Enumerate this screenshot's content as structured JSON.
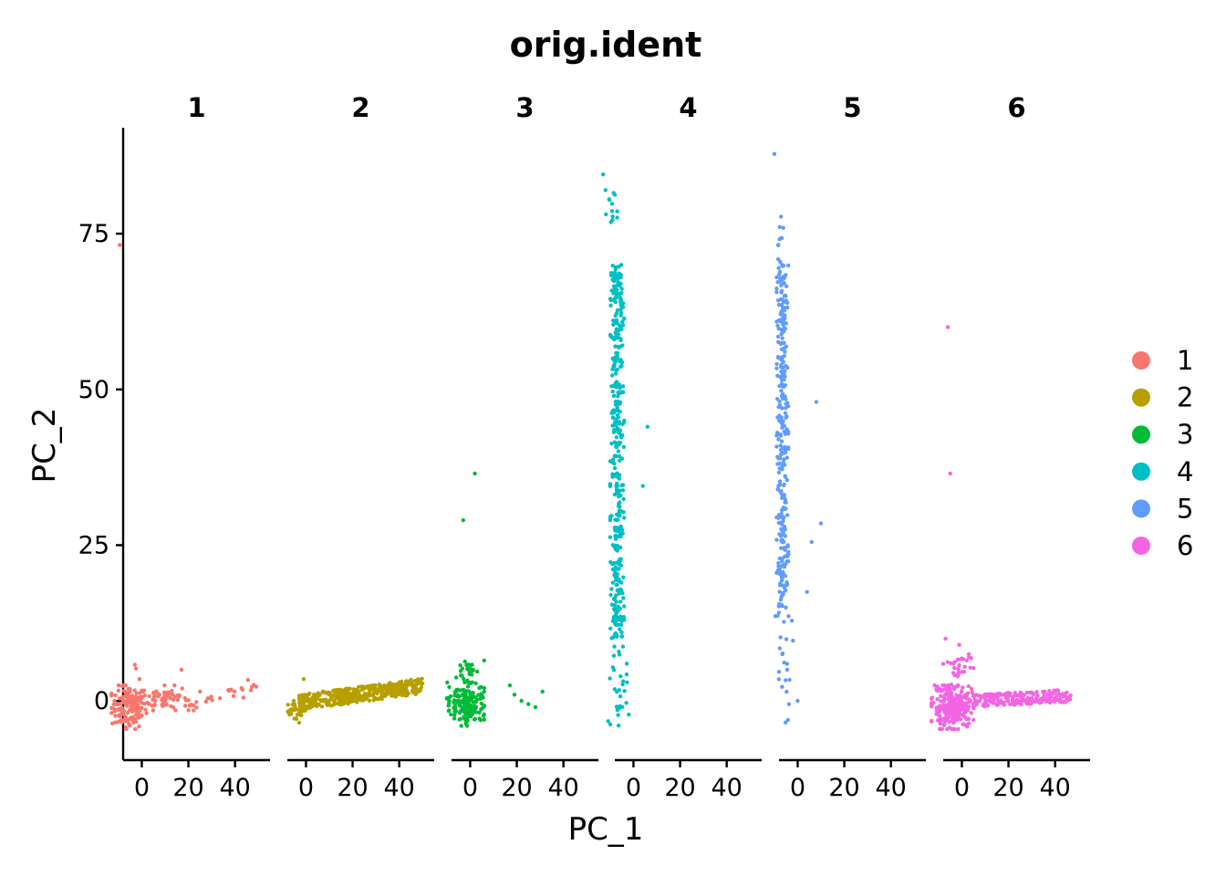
{
  "chart_data": {
    "type": "scatter",
    "title": "orig.ident",
    "xlabel": "PC_1",
    "ylabel": "PC_2",
    "xlim": [
      -8,
      55
    ],
    "ylim": [
      -9.5,
      92
    ],
    "xticks": [
      0,
      20,
      40
    ],
    "xtick_labels": [
      "0",
      "20",
      "40"
    ],
    "yticks": [
      0,
      25,
      50,
      75
    ],
    "ytick_labels": [
      "0",
      "25",
      "50",
      "75"
    ],
    "legend": {
      "position": "right",
      "entries": [
        {
          "label": "1",
          "color": "#F8766D"
        },
        {
          "label": "2",
          "color": "#B79F00"
        },
        {
          "label": "3",
          "color": "#00BA38"
        },
        {
          "label": "4",
          "color": "#00BFC4"
        },
        {
          "label": "5",
          "color": "#619CFF"
        },
        {
          "label": "6",
          "color": "#F564E3"
        }
      ]
    },
    "facets": [
      {
        "label": "1",
        "color": "#F8766D",
        "series": [
          {
            "shape": "cloud",
            "n": 140,
            "x": [
              -13,
              2
            ],
            "y": [
              -4.5,
              2.5
            ]
          },
          {
            "shape": "cloud",
            "n": 70,
            "x": [
              0,
              20
            ],
            "y": [
              -1.5,
              2.5
            ]
          },
          {
            "shape": "line",
            "n": 25,
            "x": [
              20,
              50
            ],
            "y": [
              -1,
              2.5
            ]
          }
        ],
        "points": [
          {
            "x": -9.5,
            "y": 73.2
          },
          {
            "x": -3,
            "y": 5.8
          },
          {
            "x": -2.5,
            "y": 5.2
          },
          {
            "x": -1,
            "y": 3.5
          },
          {
            "x": 17,
            "y": 5.0
          },
          {
            "x": 25,
            "y": 1.5
          }
        ]
      },
      {
        "label": "2",
        "color": "#B79F00",
        "series": [
          {
            "shape": "band",
            "n": 420,
            "x": [
              -3,
              50
            ],
            "y": [
              -1.5,
              1.0
            ],
            "slope": 0.05
          },
          {
            "shape": "cloud",
            "n": 30,
            "x": [
              -8,
              0
            ],
            "y": [
              -3.5,
              0
            ]
          }
        ],
        "points": [
          {
            "x": -1,
            "y": 3.5
          },
          {
            "x": 48,
            "y": 3.1
          },
          {
            "x": 50,
            "y": 2.8
          }
        ]
      },
      {
        "label": "3",
        "color": "#00BA38",
        "series": [
          {
            "shape": "cloud",
            "n": 170,
            "x": [
              -10,
              6
            ],
            "y": [
              -4,
              3
            ]
          },
          {
            "shape": "cloud",
            "n": 25,
            "x": [
              -6,
              3
            ],
            "y": [
              3,
              7
            ]
          }
        ],
        "points": [
          {
            "x": 2,
            "y": 36.5
          },
          {
            "x": -3,
            "y": 29.0
          },
          {
            "x": 6,
            "y": 6.5
          },
          {
            "x": 17,
            "y": 2.5
          },
          {
            "x": 19,
            "y": 1.0
          },
          {
            "x": 22,
            "y": 0.0
          },
          {
            "x": 25,
            "y": -0.5
          },
          {
            "x": 28,
            "y": -1.0
          },
          {
            "x": 31,
            "y": 1.5
          }
        ]
      },
      {
        "label": "4",
        "color": "#00BFC4",
        "series": [
          {
            "shape": "column",
            "n": 380,
            "x": [
              -10,
              -4
            ],
            "y": [
              10,
              70
            ]
          },
          {
            "shape": "column",
            "n": 30,
            "x": [
              -11,
              -2
            ],
            "y": [
              -4,
              10
            ]
          },
          {
            "shape": "column",
            "n": 12,
            "x": [
              -13,
              -7
            ],
            "y": [
              76,
              82
            ]
          }
        ],
        "points": [
          {
            "x": -13,
            "y": 84.5
          },
          {
            "x": -12,
            "y": 82.0
          },
          {
            "x": 6,
            "y": 44.0
          },
          {
            "x": 4,
            "y": 34.5
          },
          {
            "x": -4,
            "y": 45.0
          }
        ]
      },
      {
        "label": "5",
        "color": "#619CFF",
        "series": [
          {
            "shape": "column",
            "n": 300,
            "x": [
              -9,
              -4
            ],
            "y": [
              15,
              70
            ]
          },
          {
            "shape": "column",
            "n": 25,
            "x": [
              -10,
              -2
            ],
            "y": [
              -4,
              15
            ]
          },
          {
            "shape": "column",
            "n": 10,
            "x": [
              -9,
              -6
            ],
            "y": [
              70,
              78
            ]
          }
        ],
        "points": [
          {
            "x": -10,
            "y": 87.8
          },
          {
            "x": 8,
            "y": 48.0
          },
          {
            "x": 10,
            "y": 28.5
          },
          {
            "x": 6,
            "y": 25.5
          },
          {
            "x": 4,
            "y": 17.5
          },
          {
            "x": 0,
            "y": 0.0
          }
        ]
      },
      {
        "label": "6",
        "color": "#F564E3",
        "series": [
          {
            "shape": "cloud",
            "n": 260,
            "x": [
              -13,
              5
            ],
            "y": [
              -4.5,
              2.5
            ]
          },
          {
            "shape": "band",
            "n": 190,
            "x": [
              5,
              47
            ],
            "y": [
              -1.0,
              1.0
            ],
            "slope": 0.02
          },
          {
            "shape": "cloud",
            "n": 30,
            "x": [
              -8,
              5
            ],
            "y": [
              2,
              9
            ]
          }
        ],
        "points": [
          {
            "x": -6,
            "y": 60.0
          },
          {
            "x": -5,
            "y": 36.5
          },
          {
            "x": -7,
            "y": 10.0
          },
          {
            "x": 3,
            "y": 7.5
          }
        ]
      }
    ]
  }
}
